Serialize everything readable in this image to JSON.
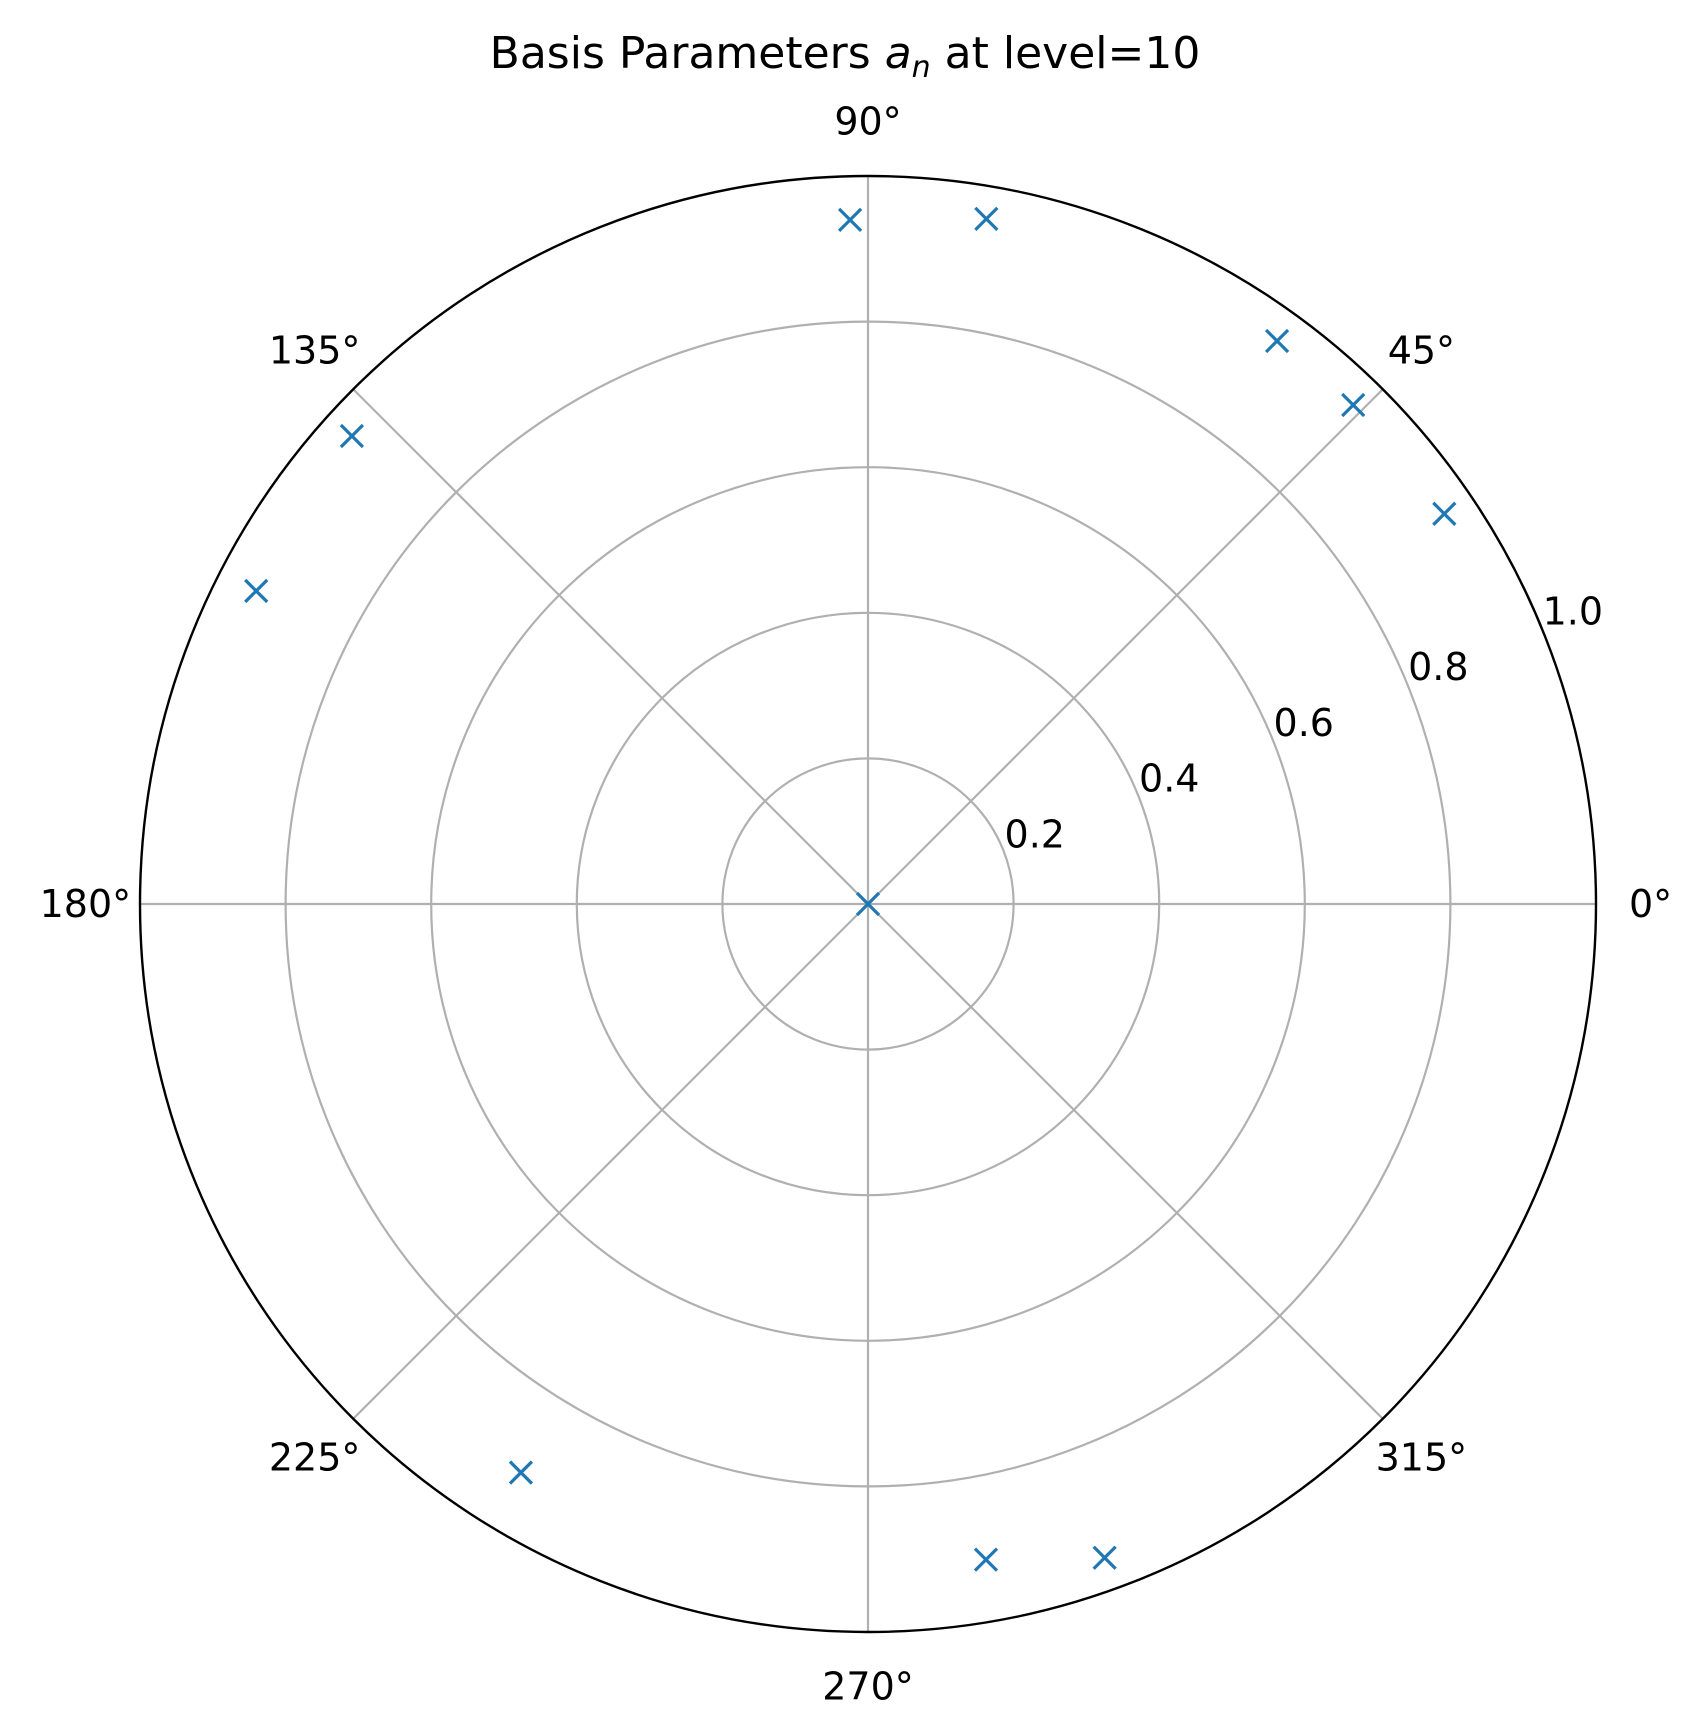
{
  "chart_data": {
    "type": "scatter",
    "projection": "polar",
    "title": {
      "prefix": "Basis Parameters ",
      "symbol": "a",
      "subscript": "n",
      "suffix": " at level=10"
    },
    "angle_ticks_deg": [
      0,
      45,
      90,
      135,
      180,
      225,
      270,
      315
    ],
    "angle_tick_labels": [
      "0°",
      "45°",
      "90°",
      "135°",
      "180°",
      "225°",
      "270°",
      "315°"
    ],
    "radial_ticks": [
      0.2,
      0.4,
      0.6,
      0.8,
      1.0
    ],
    "radial_tick_labels": [
      "0.2",
      "0.4",
      "0.6",
      "0.8",
      "1.0"
    ],
    "rlim": [
      0,
      1.0
    ],
    "radial_label_angle_deg": 22.5,
    "grid": true,
    "marker": "x",
    "color": "#1f77b4",
    "points": [
      {
        "theta_deg": 0,
        "r": 0.0
      },
      {
        "theta_deg": 91.5,
        "r": 0.94
      },
      {
        "theta_deg": 80.2,
        "r": 0.955
      },
      {
        "theta_deg": 54.0,
        "r": 0.956
      },
      {
        "theta_deg": 45.8,
        "r": 0.956
      },
      {
        "theta_deg": 34.1,
        "r": 0.956
      },
      {
        "theta_deg": 137.8,
        "r": 0.957
      },
      {
        "theta_deg": 152.9,
        "r": 0.944
      },
      {
        "theta_deg": 238.6,
        "r": 0.915
      },
      {
        "theta_deg": 280.2,
        "r": 0.915
      },
      {
        "theta_deg": 289.9,
        "r": 0.955
      }
    ]
  }
}
